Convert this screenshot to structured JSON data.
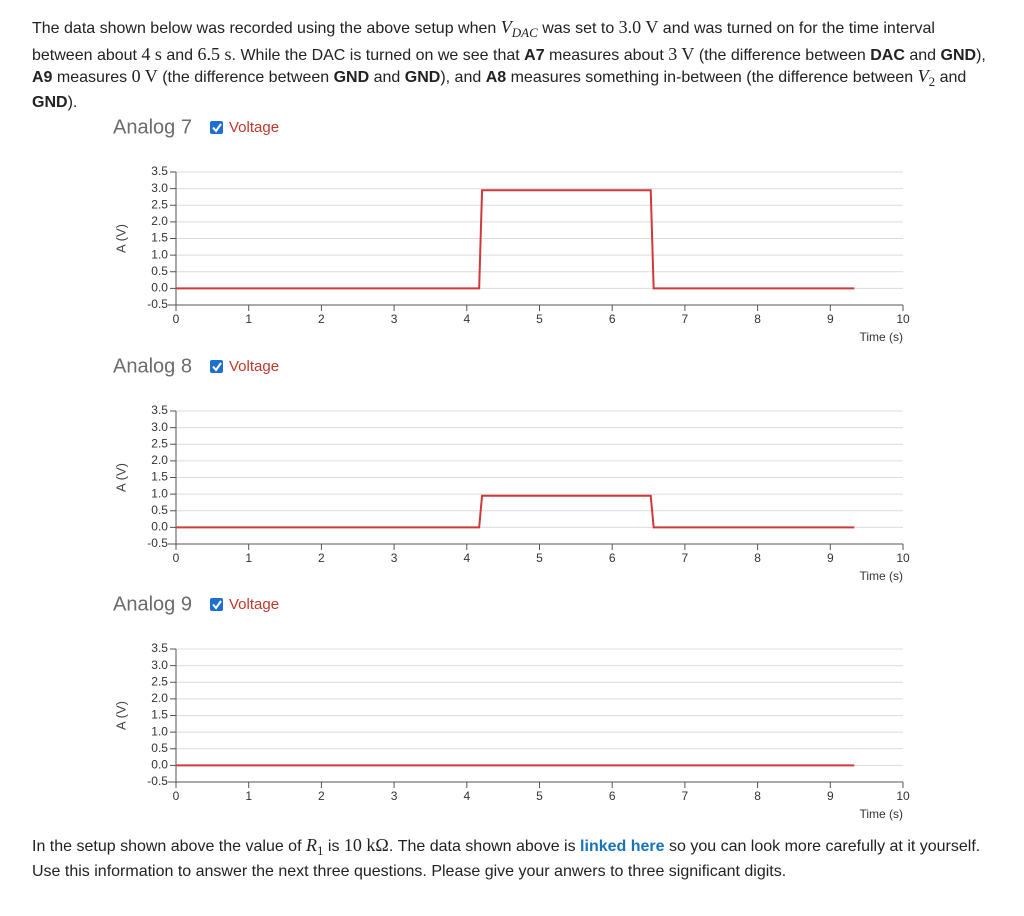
{
  "intro": [
    "The data shown below was recorded using the above setup when ",
    "V",
    "DAC",
    " was set to ",
    "3.0 V",
    " and was turned on for the time interval between about ",
    "4 s",
    " and ",
    "6.5 s",
    ". While the DAC is turned on we see that ",
    "A7",
    " measures about ",
    "3 V",
    " (the difference between ",
    "DAC",
    " and ",
    "GND",
    "), ",
    "A9",
    " measures ",
    "0 V",
    " (the difference between ",
    "GND",
    " and ",
    "GND",
    "), and ",
    "A8",
    " measures something in-between (the difference between ",
    "V",
    "2",
    " and ",
    "GND",
    ")."
  ],
  "chart_data": [
    {
      "type": "line",
      "title": "Analog 7",
      "ylabel": "A (V)",
      "xlabel": "Time (s)",
      "x": [
        0,
        4.17,
        4.21,
        6.53,
        6.57,
        9.33
      ],
      "series": [
        {
          "name": "Voltage",
          "color": "#d0393a",
          "values": [
            0,
            0,
            2.95,
            2.95,
            0,
            0
          ]
        }
      ],
      "xlim": [
        -0.11,
        10
      ],
      "ylim": [
        -0.5,
        3.5
      ],
      "xticks": [
        0,
        1,
        2,
        3,
        4,
        5,
        6,
        7,
        8,
        9,
        10
      ],
      "yticks": [
        -0.5,
        {
          "value": 0,
          "label": "0.0"
        },
        0.5,
        {
          "value": 1,
          "label": "1.0"
        },
        1.5,
        {
          "value": 2,
          "label": "2.0"
        },
        2.5,
        {
          "value": 3,
          "label": "3.0"
        },
        3.5
      ],
      "grid": true
    },
    {
      "type": "line",
      "title": "Analog 8",
      "ylabel": "A (V)",
      "xlabel": "Time (s)",
      "x": [
        0,
        4.17,
        4.21,
        6.53,
        6.57,
        9.33
      ],
      "series": [
        {
          "name": "Voltage",
          "color": "#d0393a",
          "values": [
            0,
            0,
            0.95,
            0.95,
            0,
            0
          ]
        }
      ],
      "xlim": [
        -0.11,
        10
      ],
      "ylim": [
        -0.5,
        3.5
      ],
      "xticks": [
        0,
        1,
        2,
        3,
        4,
        5,
        6,
        7,
        8,
        9,
        10
      ],
      "yticks": [
        -0.5,
        {
          "value": 0,
          "label": "0.0"
        },
        0.5,
        {
          "value": 1,
          "label": "1.0"
        },
        1.5,
        {
          "value": 2,
          "label": "2.0"
        },
        2.5,
        {
          "value": 3,
          "label": "3.0"
        },
        3.5
      ],
      "grid": true
    },
    {
      "type": "line",
      "title": "Analog 9",
      "ylabel": "A (V)",
      "xlabel": "Time (s)",
      "x": [
        0,
        9.33
      ],
      "series": [
        {
          "name": "Voltage",
          "color": "#d0393a",
          "values": [
            0,
            0
          ]
        }
      ],
      "xlim": [
        -0.11,
        10
      ],
      "ylim": [
        -0.5,
        3.5
      ],
      "xticks": [
        0,
        1,
        2,
        3,
        4,
        5,
        6,
        7,
        8,
        9,
        10
      ],
      "yticks": [
        -0.5,
        {
          "value": 0,
          "label": "0.0"
        },
        0.5,
        {
          "value": 1,
          "label": "1.0"
        },
        1.5,
        {
          "value": 2,
          "label": "2.0"
        },
        2.5,
        {
          "value": 3,
          "label": "3.0"
        },
        3.5
      ],
      "grid": true
    }
  ],
  "outro": [
    "In the setup shown above the value of ",
    "R",
    "1",
    " is ",
    "10 kΩ",
    ". The data shown above is ",
    "linked here",
    " so you can look more carefully at it yourself. Use this information to answer the next three questions. Please give your anwers to three significant digits."
  ]
}
